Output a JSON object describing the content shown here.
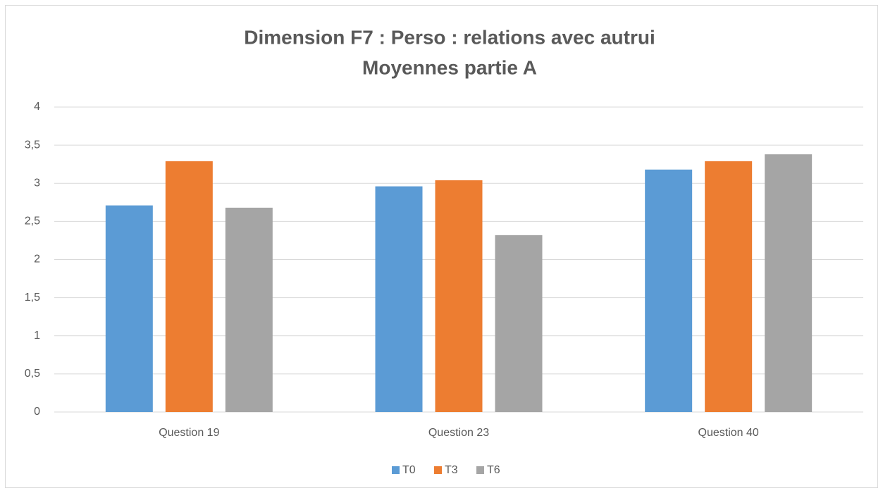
{
  "chart_data": {
    "type": "bar",
    "title": "Dimension F7 : Perso : relations avec autrui",
    "subtitle": "Moyennes partie A",
    "categories": [
      "Question 19",
      "Question 23",
      "Question 40"
    ],
    "series": [
      {
        "name": "T0",
        "color": "#5b9bd5",
        "values": [
          2.71,
          2.96,
          3.18
        ]
      },
      {
        "name": "T3",
        "color": "#ed7d31",
        "values": [
          3.29,
          3.04,
          3.29
        ]
      },
      {
        "name": "T6",
        "color": "#a5a5a5",
        "values": [
          2.68,
          2.32,
          3.38
        ]
      }
    ],
    "ylim": [
      0,
      4
    ],
    "yticks": [
      0,
      {
        "value": 0.5,
        "label": "0,5"
      },
      1,
      {
        "value": 1.5,
        "label": "1,5"
      },
      2,
      {
        "value": 2.5,
        "label": "2,5"
      },
      3,
      {
        "value": 3.5,
        "label": "3,5"
      },
      4
    ],
    "grid": true,
    "legend": "bottom"
  }
}
